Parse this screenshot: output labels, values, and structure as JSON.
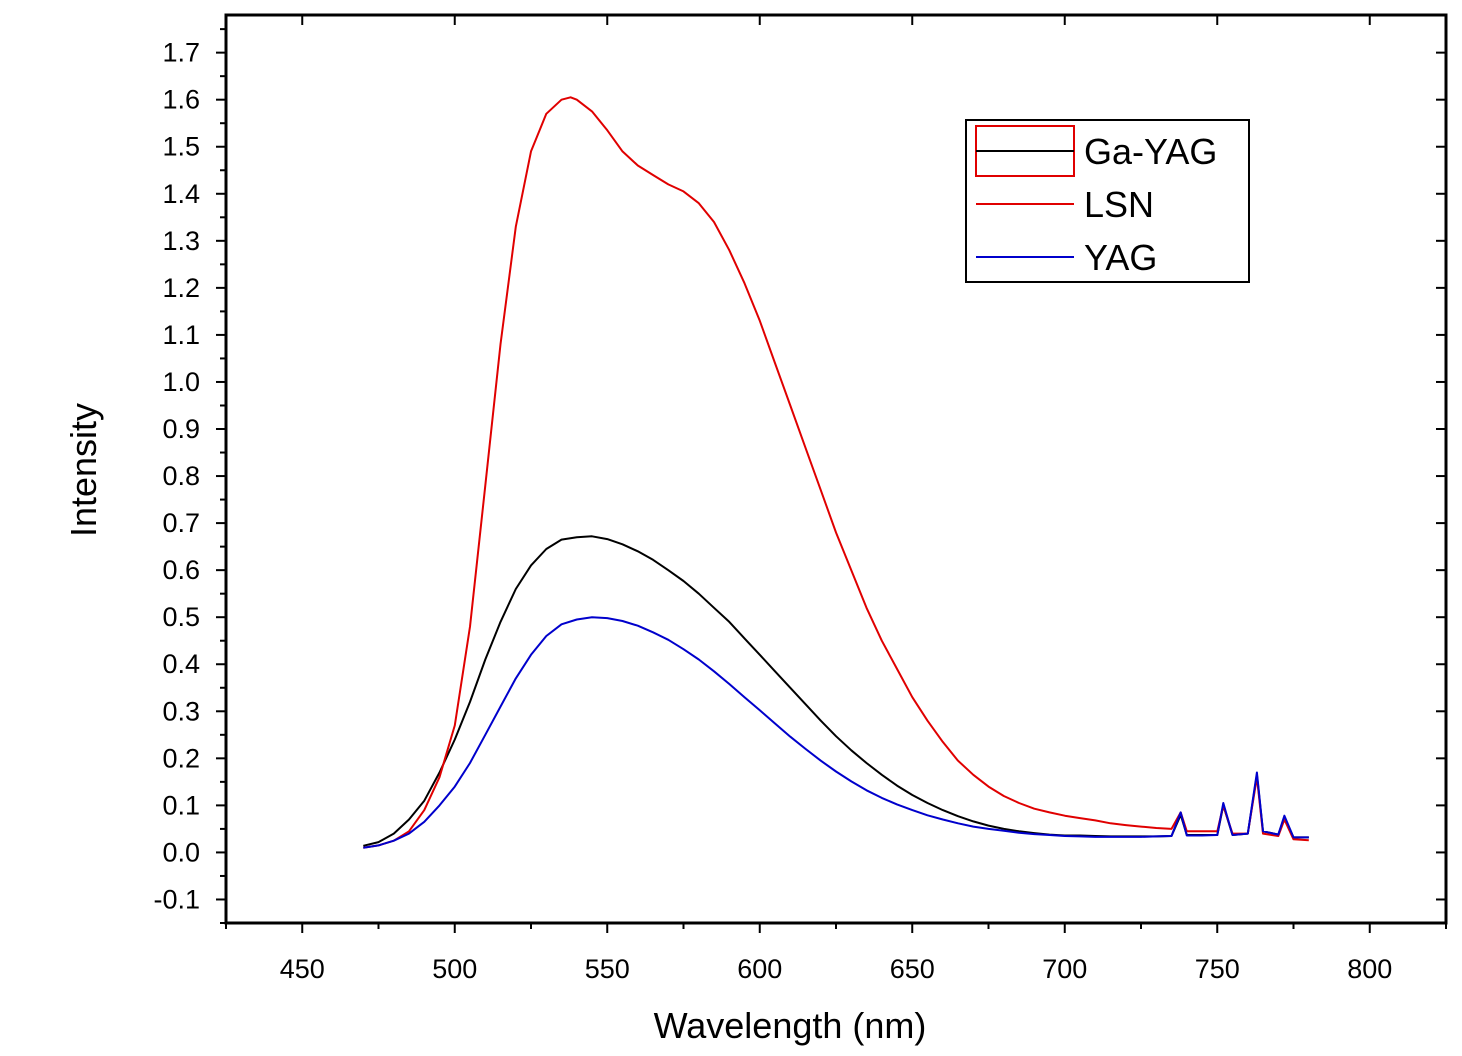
{
  "chart_data": {
    "type": "line",
    "title": "",
    "xlabel": "Wavelength (nm)",
    "ylabel": "Intensity",
    "xlim": [
      425,
      825
    ],
    "ylim": [
      -0.15,
      1.78
    ],
    "xticks": [
      450,
      500,
      550,
      600,
      650,
      700,
      750,
      800
    ],
    "xtick_labels": [
      "450",
      "500",
      "550",
      "600",
      "650",
      "700",
      "750",
      "800"
    ],
    "yticks": [
      -0.1,
      0.0,
      0.1,
      0.2,
      0.3,
      0.4,
      0.5,
      0.6,
      0.7,
      0.8,
      0.9,
      1.0,
      1.1,
      1.2,
      1.3,
      1.4,
      1.5,
      1.6,
      1.7
    ],
    "ytick_labels": [
      "-0.1",
      "0.0",
      "0.1",
      "0.2",
      "0.3",
      "0.4",
      "0.5",
      "0.6",
      "0.7",
      "0.8",
      "0.9",
      "1.0",
      "1.1",
      "1.2",
      "1.3",
      "1.4",
      "1.5",
      "1.6",
      "1.7"
    ],
    "grid": false,
    "legend": "top-right",
    "series": [
      {
        "name": "Ga-YAG",
        "color": "#000000",
        "x": [
          470,
          475,
          480,
          485,
          490,
          495,
          500,
          505,
          510,
          515,
          520,
          525,
          530,
          535,
          540,
          545,
          550,
          555,
          560,
          565,
          570,
          575,
          580,
          585,
          590,
          595,
          600,
          605,
          610,
          615,
          620,
          625,
          630,
          635,
          640,
          645,
          650,
          655,
          660,
          665,
          670,
          675,
          680,
          685,
          690,
          695,
          700,
          705,
          710,
          715,
          720,
          725,
          730,
          735,
          738,
          740,
          745,
          750,
          752,
          755,
          760,
          763,
          765,
          770,
          772,
          775,
          780
        ],
        "y": [
          0.014,
          0.022,
          0.04,
          0.07,
          0.11,
          0.17,
          0.24,
          0.32,
          0.41,
          0.49,
          0.56,
          0.61,
          0.645,
          0.665,
          0.67,
          0.672,
          0.666,
          0.655,
          0.64,
          0.622,
          0.6,
          0.577,
          0.55,
          0.52,
          0.49,
          0.455,
          0.42,
          0.385,
          0.35,
          0.315,
          0.28,
          0.247,
          0.217,
          0.19,
          0.165,
          0.142,
          0.122,
          0.105,
          0.09,
          0.077,
          0.066,
          0.057,
          0.05,
          0.045,
          0.041,
          0.038,
          0.036,
          0.036,
          0.035,
          0.034,
          0.034,
          0.034,
          0.034,
          0.035,
          0.08,
          0.037,
          0.037,
          0.037,
          0.1,
          0.037,
          0.04,
          0.165,
          0.045,
          0.038,
          0.075,
          0.032,
          0.032
        ]
      },
      {
        "name": "LSN",
        "color": "#e00000",
        "x": [
          470,
          475,
          480,
          485,
          490,
          495,
          500,
          505,
          510,
          515,
          520,
          525,
          530,
          535,
          538,
          540,
          545,
          550,
          555,
          560,
          565,
          570,
          575,
          580,
          585,
          590,
          595,
          600,
          605,
          610,
          615,
          620,
          625,
          630,
          635,
          640,
          645,
          650,
          655,
          660,
          665,
          670,
          675,
          680,
          685,
          690,
          695,
          700,
          705,
          710,
          715,
          720,
          725,
          730,
          735,
          738,
          740,
          745,
          750,
          752,
          755,
          760,
          763,
          765,
          770,
          772,
          775,
          780
        ],
        "y": [
          0.01,
          0.015,
          0.025,
          0.045,
          0.09,
          0.16,
          0.27,
          0.48,
          0.78,
          1.08,
          1.33,
          1.49,
          1.57,
          1.6,
          1.605,
          1.6,
          1.575,
          1.535,
          1.49,
          1.46,
          1.44,
          1.42,
          1.405,
          1.38,
          1.34,
          1.28,
          1.21,
          1.13,
          1.04,
          0.95,
          0.86,
          0.77,
          0.68,
          0.6,
          0.52,
          0.45,
          0.39,
          0.33,
          0.28,
          0.235,
          0.195,
          0.165,
          0.14,
          0.12,
          0.105,
          0.093,
          0.085,
          0.078,
          0.073,
          0.068,
          0.062,
          0.058,
          0.055,
          0.052,
          0.05,
          0.085,
          0.045,
          0.045,
          0.045,
          0.1,
          0.04,
          0.04,
          0.16,
          0.04,
          0.035,
          0.07,
          0.028,
          0.026
        ]
      },
      {
        "name": "YAG",
        "color": "#0000cc",
        "x": [
          470,
          475,
          480,
          485,
          490,
          495,
          500,
          505,
          510,
          515,
          520,
          525,
          530,
          535,
          540,
          545,
          550,
          555,
          560,
          565,
          570,
          575,
          580,
          585,
          590,
          595,
          600,
          605,
          610,
          615,
          620,
          625,
          630,
          635,
          640,
          645,
          650,
          655,
          660,
          665,
          670,
          675,
          680,
          685,
          690,
          695,
          700,
          705,
          710,
          715,
          720,
          725,
          730,
          735,
          738,
          740,
          745,
          750,
          752,
          755,
          760,
          763,
          765,
          770,
          772,
          775,
          780
        ],
        "y": [
          0.01,
          0.015,
          0.025,
          0.04,
          0.065,
          0.1,
          0.14,
          0.19,
          0.25,
          0.31,
          0.37,
          0.42,
          0.46,
          0.485,
          0.495,
          0.5,
          0.498,
          0.492,
          0.482,
          0.468,
          0.452,
          0.432,
          0.41,
          0.385,
          0.358,
          0.33,
          0.302,
          0.274,
          0.246,
          0.22,
          0.195,
          0.172,
          0.151,
          0.132,
          0.116,
          0.102,
          0.09,
          0.079,
          0.07,
          0.062,
          0.055,
          0.05,
          0.046,
          0.042,
          0.039,
          0.037,
          0.035,
          0.034,
          0.033,
          0.033,
          0.033,
          0.033,
          0.034,
          0.035,
          0.085,
          0.036,
          0.036,
          0.037,
          0.105,
          0.037,
          0.04,
          0.17,
          0.045,
          0.038,
          0.078,
          0.032,
          0.032
        ]
      }
    ]
  }
}
